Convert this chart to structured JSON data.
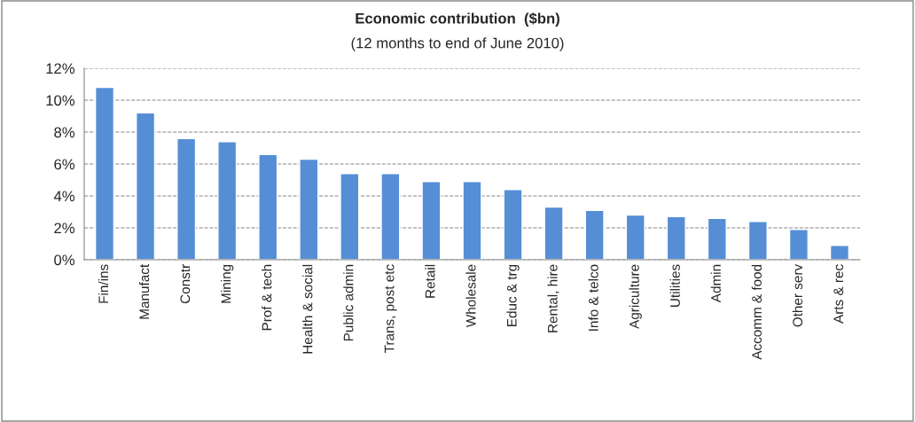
{
  "chart_data": {
    "type": "bar",
    "title": "Economic contribution  ($bn)",
    "subtitle": "(12 months to end of June 2010)",
    "categories": [
      "Fin/ins",
      "Manufact",
      "Constr",
      "Mining",
      "Prof & tech",
      "Health & social",
      "Public admin",
      "Trans, post etc",
      "Retail",
      "Wholesale",
      "Educ & trg",
      "Rental, hire",
      "Info & telco",
      "Agriculture",
      "Utilities",
      "Admin",
      "Accomm & food",
      "Other serv",
      "Arts & rec"
    ],
    "values": [
      10.8,
      9.2,
      7.6,
      7.4,
      6.6,
      6.3,
      5.4,
      5.4,
      4.9,
      4.9,
      4.4,
      3.3,
      3.1,
      2.8,
      2.7,
      2.6,
      2.4,
      1.9,
      0.9
    ],
    "color": "#558ed5",
    "ylim": [
      0,
      12
    ],
    "yticks": [
      {
        "value": 0,
        "label": "0%"
      },
      {
        "value": 2,
        "label": "2%"
      },
      {
        "value": 4,
        "label": "4%"
      },
      {
        "value": 6,
        "label": "6%"
      },
      {
        "value": 8,
        "label": "8%"
      },
      {
        "value": 10,
        "label": "10%"
      },
      {
        "value": 12,
        "label": "12%"
      }
    ],
    "grid": "y",
    "legend": false
  }
}
